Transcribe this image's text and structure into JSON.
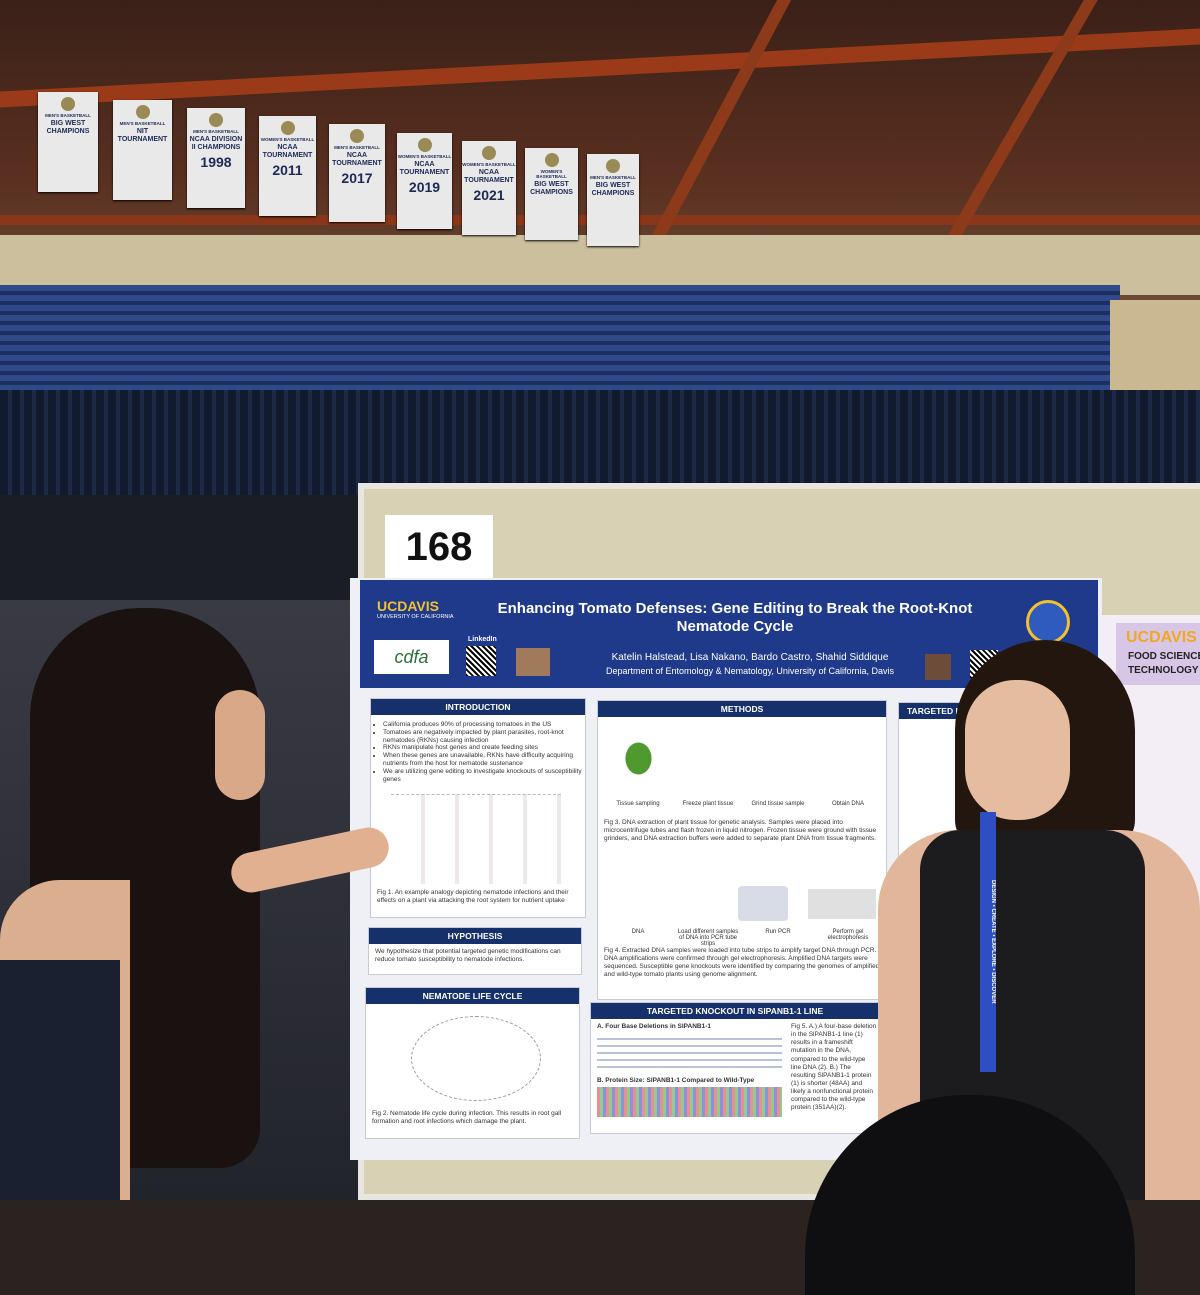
{
  "banners": [
    {
      "top": "MEN'S BASKETBALL",
      "main": "BIG WEST CHAMPIONS"
    },
    {
      "top": "MEN'S BASKETBALL",
      "main": "NIT TOURNAMENT"
    },
    {
      "top": "MEN'S BASKETBALL",
      "main": "NCAA DIVISION II CHAMPIONS",
      "year": "1998"
    },
    {
      "top": "WOMEN'S BASKETBALL",
      "main": "NCAA TOURNAMENT",
      "year": "2011"
    },
    {
      "top": "MEN'S BASKETBALL",
      "main": "NCAA TOURNAMENT",
      "year": "2017"
    },
    {
      "top": "WOMEN'S BASKETBALL",
      "main": "NCAA TOURNAMENT",
      "year": "2019"
    },
    {
      "top": "WOMEN'S BASKETBALL",
      "main": "NCAA TOURNAMENT",
      "year": "2021"
    },
    {
      "top": "WOMEN'S BASKETBALL",
      "main": "BIG WEST CHAMPIONS"
    },
    {
      "top": "MEN'S BASKETBALL",
      "main": "BIG WEST CHAMPIONS"
    }
  ],
  "poster_number": "168",
  "poster": {
    "logo": "UCDAVIS",
    "logo_sub": "UNIVERSITY OF CALIFORNIA",
    "title": "Enhancing Tomato Defenses: Gene Editing to Break the Root-Knot Nematode Cycle",
    "linkedin": "LinkedIn",
    "cdfa": "cdfa",
    "authors": "Katelin Halstead, Lisa Nakano, Bardo Castro, Shahid Siddique",
    "department": "Department of Entomology & Nematology, University of California, Davis",
    "introduction": {
      "heading": "INTRODUCTION",
      "bullets": [
        "California produces 90% of processing tomatoes in the US",
        "Tomatoes are negatively impacted by plant parasites, root-knot nematodes (RKNs) causing infection",
        "RKNs manipulate host genes and create feeding sites",
        "When these genes are unavailable, RKNs have difficulty acquiring nutrients from the host for nematode sustenance",
        "We are utilizing gene editing to investigate knockouts of susceptibility genes"
      ],
      "caption": "Fig 1. An example analogy depicting nematode infections and their effects on a plant via attacking the root system for nutrient uptake"
    },
    "hypothesis": {
      "heading": "HYPOTHESIS",
      "text": "We hypothesize that potential targeted genetic modifications can reduce tomato susceptibility to nematode infections."
    },
    "life_cycle": {
      "heading": "NEMATODE LIFE CYCLE",
      "caption": "Fig 2. Nematode life cycle during infection. This results in root gall formation and root infections which damage the plant."
    },
    "methods": {
      "heading": "METHODS",
      "steps_a": [
        "Tissue sampling",
        "Freeze plant tissue",
        "Grind tissue sample",
        "Obtain DNA"
      ],
      "caption_a": "Fig 3. DNA extraction of plant tissue for genetic analysis. Samples were placed into microcentrifuge tubes and flash frozen in liquid nitrogen. Frozen tissue were ground with tissue grinders, and DNA extraction buffers were added to separate plant DNA from tissue fragments.",
      "steps_b": [
        "DNA",
        "Load different samples of DNA into PCR tube strips",
        "Run PCR",
        "Perform gel electrophoresis"
      ],
      "caption_b": "Fig 4. Extracted DNA samples were loaded into tube strips to amplify target DNA through PCR. DNA amplifications were confirmed through gel electrophoresis. Amplified DNA targets were sequenced. Susceptible gene knockouts were identified by comparing the genomes of amplified and wild-type tomato plants using genome alignment."
    },
    "knockout": {
      "heading": "TARGETED KNOCKOUT IN SlPANB1-1 LINE",
      "part_a": "A. Four Base Deletions in SlPANB1-1",
      "part_b": "B. Protein Size: SlPANB1-1 Compared to Wild-Type",
      "caption": "Fig 5. A.) A four-base deletion in the SlPANB1-1 line (1) results in a frameshift mutation in the DNA, compared to the wild-type line DNA (2). B.) The resulting SlPANB1-1 protein (1) is shorter (48AA) and likely a nonfunctional protein compared to the wild-type protein (351AA)(2)."
    },
    "side_heading": "TARGETED KNOCKOUT"
  },
  "neighbor_poster": {
    "logo": "UCDAVIS",
    "line1": "FOOD SCIENCE",
    "line2": "TECHNOLOGY"
  },
  "lanyard": "DESIGN • CREATE • EXPLORE • DISCOVER"
}
